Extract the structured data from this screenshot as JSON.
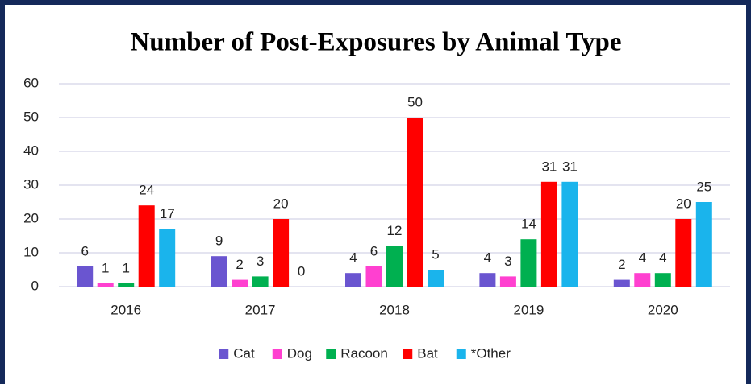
{
  "chart_data": {
    "type": "bar",
    "title": "Number of Post-Exposures by Animal Type",
    "categories": [
      "2016",
      "2017",
      "2018",
      "2019",
      "2020"
    ],
    "series": [
      {
        "name": "Cat",
        "color": "#6a55d0",
        "values": [
          6,
          9,
          4,
          4,
          2
        ]
      },
      {
        "name": "Dog",
        "color": "#ff40d0",
        "values": [
          1,
          2,
          6,
          3,
          4
        ]
      },
      {
        "name": "Racoon",
        "color": "#00b050",
        "values": [
          1,
          3,
          12,
          14,
          4
        ]
      },
      {
        "name": "Bat",
        "color": "#ff0000",
        "values": [
          24,
          20,
          50,
          31,
          20
        ]
      },
      {
        "name": "*Other",
        "color": "#1ab4ec",
        "values": [
          17,
          0,
          5,
          31,
          25
        ]
      }
    ],
    "ylim": [
      0,
      60
    ],
    "yticks": [
      0,
      10,
      20,
      30,
      40,
      50,
      60
    ],
    "grid": true,
    "legend": "bottom"
  }
}
